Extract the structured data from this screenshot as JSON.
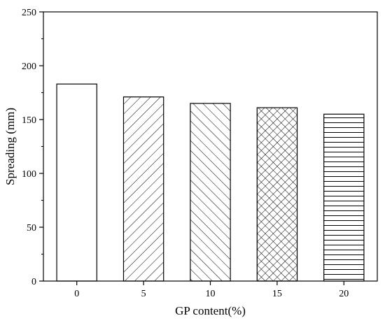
{
  "chart_data": {
    "type": "bar",
    "title": "",
    "xlabel": "GP content(%)",
    "ylabel": "Spreading (mm)",
    "categories": [
      "0",
      "5",
      "10",
      "15",
      "20"
    ],
    "values": [
      183,
      171,
      165,
      161,
      155
    ],
    "ylim": [
      0,
      250
    ],
    "yticks": [
      "0",
      "50",
      "100",
      "150",
      "200",
      "250"
    ],
    "grid": false,
    "legend": "none",
    "bar_fills": [
      "none",
      "diagonal-right",
      "diagonal-left",
      "crosshatch",
      "horizontal"
    ],
    "bar_color": "#ffffff",
    "stroke_color": "#000000"
  }
}
